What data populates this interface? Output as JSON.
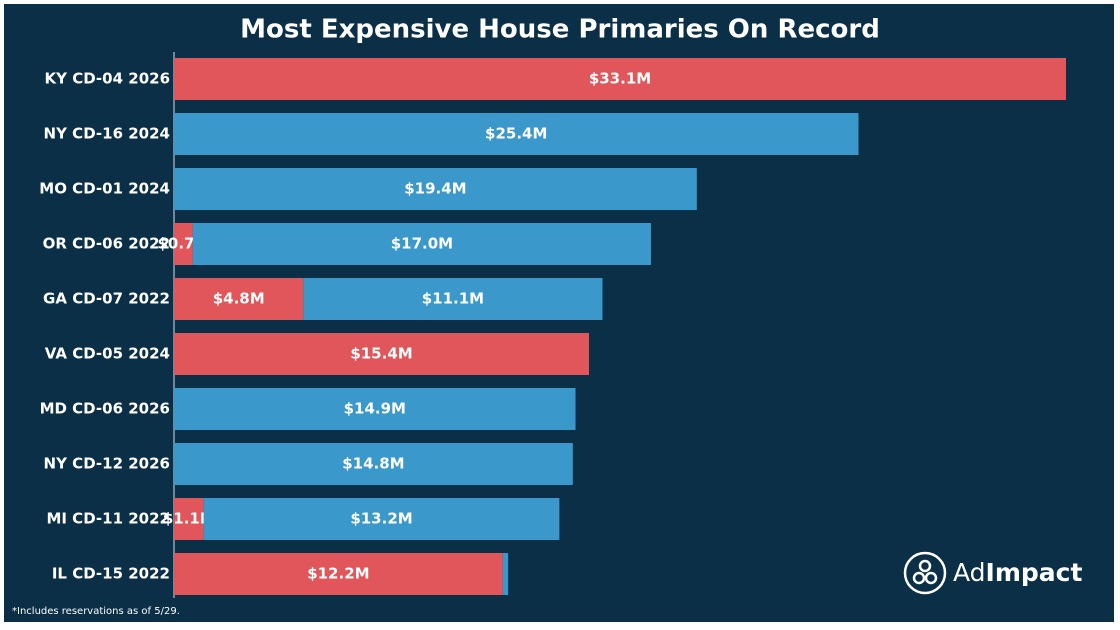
{
  "chart_data": {
    "type": "stacked-bar-horizontal",
    "title": "Most Expensive House Primaries On Record",
    "categories": [
      "KY CD-04 2026",
      "NY CD-16 2024",
      "MO CD-01 2024",
      "OR CD-06 2022",
      "GA CD-07 2022",
      "VA CD-05 2024",
      "MD CD-06 2026",
      "NY CD-12 2026",
      "MI CD-11 2022",
      "IL CD-15 2022"
    ],
    "series": [
      {
        "color": "#e0565a",
        "values": [
          33.1,
          null,
          null,
          0.7,
          4.8,
          15.4,
          null,
          null,
          1.1,
          12.2
        ],
        "value_labels": [
          "$33.1M",
          null,
          null,
          "$0.7M",
          "$4.8M",
          "$15.4M",
          null,
          null,
          "$1.1M",
          "$12.2M"
        ]
      },
      {
        "color": "#3b98cb",
        "values": [
          null,
          25.4,
          19.4,
          17.0,
          11.1,
          null,
          14.9,
          14.8,
          13.2,
          0.2
        ],
        "value_labels": [
          null,
          "$25.4M",
          "$19.4M",
          "$17.0M",
          "$11.1M",
          null,
          "$14.9M",
          "$14.8M",
          "$13.2M",
          null
        ]
      }
    ],
    "footnote": "*Includes reservations as of 5/29.",
    "brand": [
      "Ad",
      "Impact"
    ]
  }
}
